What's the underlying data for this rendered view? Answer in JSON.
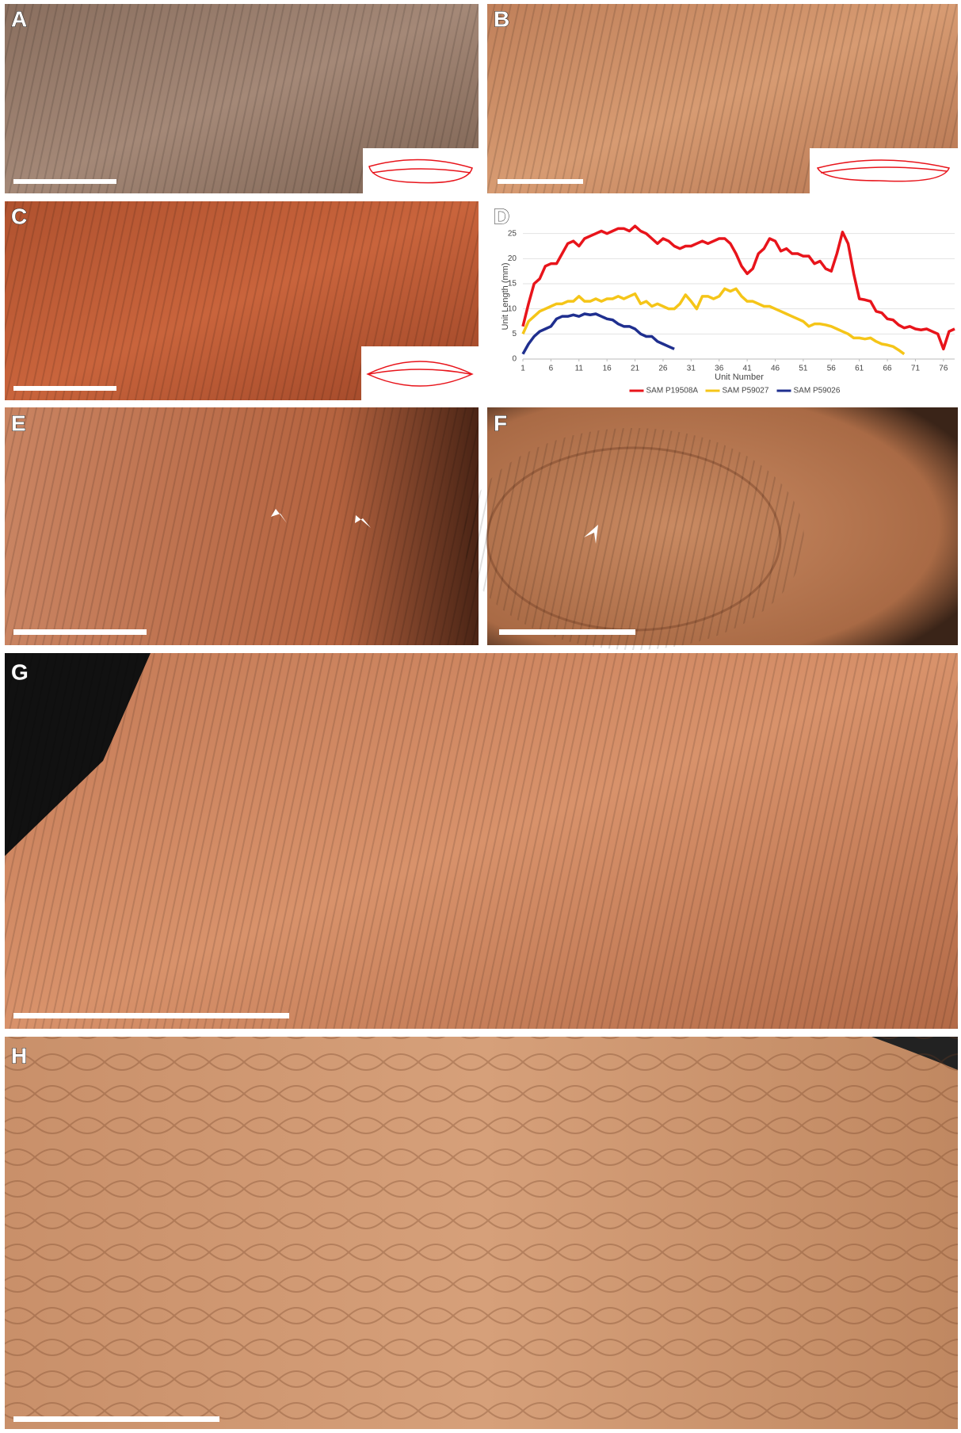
{
  "panels": [
    "A",
    "B",
    "C",
    "D",
    "E",
    "F",
    "G",
    "H"
  ],
  "chart_data": {
    "type": "line",
    "x_label": "Unit Number",
    "y_label": "Unit Length (mm)",
    "x": [
      1,
      2,
      3,
      4,
      5,
      6,
      7,
      8,
      9,
      10,
      11,
      12,
      13,
      14,
      15,
      16,
      17,
      18,
      19,
      20,
      21,
      22,
      23,
      24,
      25,
      26,
      27,
      28,
      29,
      30,
      31,
      32,
      33,
      34,
      35,
      36,
      37,
      38,
      39,
      40,
      41,
      42,
      43,
      44,
      45,
      46,
      47,
      48,
      49,
      50,
      51,
      52,
      53,
      54,
      55,
      56,
      57,
      58,
      59,
      60,
      61,
      62,
      63,
      64,
      65,
      66,
      67,
      68,
      69,
      70,
      71,
      72,
      73,
      74,
      75,
      76,
      77,
      78
    ],
    "xlim": [
      1,
      78
    ],
    "xticks": [
      1,
      6,
      11,
      16,
      21,
      26,
      31,
      36,
      41,
      46,
      51,
      56,
      61,
      66,
      71,
      76
    ],
    "ylim": [
      0,
      27
    ],
    "yticks": [
      0,
      5,
      10,
      15,
      20,
      25
    ],
    "grid": true,
    "legend": "bottom",
    "series": [
      {
        "name": "SAM P19508A",
        "color": "#e8141b",
        "values": [
          6.5,
          11,
          15,
          16,
          18.5,
          19,
          19,
          21,
          23,
          23.5,
          22.5,
          24,
          24.5,
          25,
          25.5,
          25,
          25.5,
          26,
          26,
          25.5,
          26.5,
          25.5,
          25,
          24,
          23,
          24,
          23.5,
          22.5,
          22,
          22.5,
          22.5,
          23,
          23.5,
          23,
          23.5,
          24,
          24,
          23,
          21,
          18.5,
          17,
          18,
          21,
          22,
          24,
          23.5,
          21.5,
          22,
          21,
          21,
          20.5,
          20.5,
          19,
          19.5,
          18,
          17.5,
          21,
          25.3,
          23,
          17,
          12,
          11.8,
          11.5,
          9.5,
          9.2,
          8,
          7.8,
          6.8,
          6.2,
          6.5,
          6,
          5.8,
          6,
          5.5,
          5,
          2,
          5.5,
          6
        ]
      },
      {
        "name": "SAM P59027",
        "color": "#f5c518",
        "values": [
          5,
          7.5,
          8.5,
          9.5,
          10,
          10.5,
          11,
          11,
          11.5,
          11.5,
          12.5,
          11.5,
          11.5,
          12,
          11.5,
          12,
          12,
          12.5,
          12,
          12.5,
          13,
          11,
          11.5,
          10.5,
          11,
          10.5,
          10,
          10,
          11,
          12.8,
          11.5,
          10,
          12.5,
          12.5,
          12,
          12.5,
          14,
          13.5,
          14,
          12.5,
          11.5,
          11.5,
          11,
          10.5,
          10.5,
          10,
          9.5,
          9,
          8.5,
          8,
          7.5,
          6.5,
          7,
          7,
          6.8,
          6.5,
          6,
          5.5,
          5,
          4.2,
          4.2,
          4,
          4.2,
          3.5,
          3,
          2.8,
          2.5,
          1.8,
          1,
          null,
          null,
          null,
          null,
          null,
          null,
          null,
          null,
          null
        ]
      },
      {
        "name": "SAM P59026",
        "color": "#1f2f8f",
        "values": [
          1,
          3,
          4.5,
          5.5,
          6,
          6.5,
          8,
          8.5,
          8.5,
          8.8,
          8.5,
          9,
          8.8,
          9,
          8.5,
          8,
          7.8,
          7,
          6.5,
          6.5,
          6,
          5,
          4.5,
          4.5,
          3.5,
          3,
          2.5,
          2,
          null,
          null,
          null,
          null,
          null,
          null,
          null,
          null,
          null,
          null,
          null,
          null,
          null,
          null,
          null,
          null,
          null,
          null,
          null,
          null,
          null,
          null,
          null,
          null,
          null,
          null,
          null,
          null,
          null,
          null,
          null,
          null,
          null,
          null,
          null,
          null,
          null,
          null,
          null,
          null,
          null,
          null,
          null,
          null,
          null,
          null,
          null,
          null,
          null,
          null
        ]
      }
    ]
  }
}
